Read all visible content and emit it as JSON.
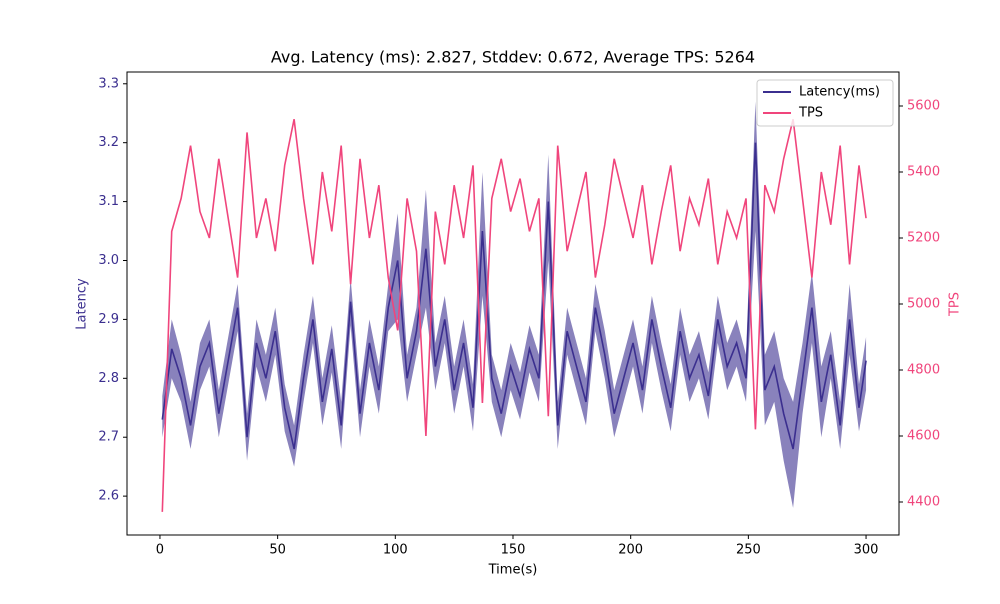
{
  "chart_data": {
    "type": "line",
    "title": "Avg. Latency (ms): 2.827, Stddev: 0.672, Average TPS: 5264",
    "xlabel": "Time(s)",
    "ylabel": "Latency",
    "y2label": "TPS",
    "legend": "upper right",
    "x": [
      1,
      5,
      9,
      13,
      17,
      21,
      25,
      29,
      33,
      37,
      41,
      45,
      49,
      53,
      57,
      61,
      65,
      69,
      73,
      77,
      81,
      85,
      89,
      93,
      97,
      101,
      105,
      109,
      113,
      117,
      121,
      125,
      129,
      133,
      137,
      141,
      145,
      149,
      153,
      157,
      161,
      165,
      169,
      173,
      177,
      181,
      185,
      189,
      193,
      197,
      201,
      205,
      209,
      213,
      217,
      221,
      225,
      229,
      233,
      237,
      241,
      245,
      249,
      253,
      257,
      261,
      265,
      269,
      273,
      277,
      281,
      285,
      289,
      293,
      297,
      300
    ],
    "series": [
      {
        "name": "Latency(ms)",
        "color": "#3b2f8f",
        "axis": "y",
        "values": [
          2.73,
          2.85,
          2.8,
          2.72,
          2.82,
          2.86,
          2.74,
          2.83,
          2.92,
          2.7,
          2.86,
          2.8,
          2.88,
          2.75,
          2.68,
          2.8,
          2.9,
          2.76,
          2.85,
          2.72,
          2.93,
          2.74,
          2.86,
          2.78,
          2.92,
          3.0,
          2.8,
          2.88,
          3.02,
          2.82,
          2.9,
          2.78,
          2.86,
          2.75,
          3.05,
          2.8,
          2.74,
          2.82,
          2.77,
          2.85,
          2.8,
          3.1,
          2.72,
          2.88,
          2.82,
          2.76,
          2.92,
          2.84,
          2.74,
          2.8,
          2.86,
          2.78,
          2.9,
          2.82,
          2.75,
          2.88,
          2.8,
          2.84,
          2.77,
          2.9,
          2.82,
          2.86,
          2.8,
          3.2,
          2.78,
          2.82,
          2.74,
          2.68,
          2.8,
          2.92,
          2.76,
          2.84,
          2.72,
          2.9,
          2.75,
          2.83
        ],
        "lower": [
          2.7,
          2.8,
          2.76,
          2.68,
          2.78,
          2.82,
          2.7,
          2.79,
          2.88,
          2.66,
          2.82,
          2.76,
          2.84,
          2.71,
          2.65,
          2.76,
          2.86,
          2.72,
          2.81,
          2.68,
          2.89,
          2.7,
          2.82,
          2.74,
          2.88,
          2.9,
          2.76,
          2.84,
          2.92,
          2.78,
          2.86,
          2.74,
          2.82,
          2.71,
          2.94,
          2.76,
          2.7,
          2.78,
          2.73,
          2.81,
          2.76,
          3.0,
          2.68,
          2.84,
          2.78,
          2.72,
          2.88,
          2.8,
          2.7,
          2.76,
          2.82,
          2.74,
          2.86,
          2.78,
          2.71,
          2.84,
          2.76,
          2.8,
          2.73,
          2.86,
          2.78,
          2.82,
          2.76,
          3.05,
          2.72,
          2.76,
          2.66,
          2.58,
          2.74,
          2.86,
          2.7,
          2.8,
          2.68,
          2.84,
          2.71,
          2.78
        ],
        "upper": [
          2.77,
          2.9,
          2.84,
          2.76,
          2.86,
          2.9,
          2.78,
          2.87,
          2.96,
          2.74,
          2.9,
          2.84,
          2.92,
          2.79,
          2.72,
          2.84,
          2.94,
          2.8,
          2.89,
          2.76,
          2.97,
          2.78,
          2.9,
          2.82,
          2.96,
          3.08,
          2.84,
          2.92,
          3.12,
          2.86,
          2.94,
          2.82,
          2.9,
          2.79,
          3.15,
          2.84,
          2.78,
          2.86,
          2.81,
          2.89,
          2.84,
          3.18,
          2.76,
          2.92,
          2.86,
          2.8,
          2.96,
          2.88,
          2.78,
          2.84,
          2.9,
          2.82,
          2.94,
          2.86,
          2.79,
          2.92,
          2.84,
          2.88,
          2.81,
          2.94,
          2.86,
          2.9,
          2.84,
          3.27,
          2.84,
          2.88,
          2.8,
          2.76,
          2.86,
          2.98,
          2.82,
          2.88,
          2.76,
          2.96,
          2.79,
          2.87
        ]
      },
      {
        "name": "TPS",
        "color": "#f0457c",
        "axis": "y2",
        "values": [
          4370,
          5220,
          5320,
          5480,
          5280,
          5200,
          5440,
          5260,
          5080,
          5520,
          5200,
          5320,
          5160,
          5420,
          5560,
          5320,
          5120,
          5400,
          5220,
          5480,
          5060,
          5440,
          5200,
          5360,
          5080,
          4920,
          5320,
          5160,
          4600,
          5280,
          5120,
          5360,
          5200,
          5420,
          4700,
          5320,
          5440,
          5280,
          5380,
          5220,
          5320,
          4660,
          5480,
          5160,
          5280,
          5400,
          5080,
          5240,
          5440,
          5320,
          5200,
          5360,
          5120,
          5280,
          5420,
          5160,
          5320,
          5240,
          5380,
          5120,
          5280,
          5200,
          5320,
          4620,
          5360,
          5280,
          5440,
          5560,
          5320,
          5080,
          5400,
          5240,
          5480,
          5120,
          5420,
          5260
        ]
      }
    ],
    "xlim": [
      -14,
      314
    ],
    "xticks": [
      0,
      50,
      100,
      150,
      200,
      250,
      300
    ],
    "ylim": [
      2.534,
      3.32
    ],
    "yticks": [
      2.6,
      2.7,
      2.8,
      2.9,
      {
        "value": 3.0,
        "label": "3.0"
      },
      3.1,
      3.2,
      3.3
    ],
    "y2lim": [
      4300,
      5703
    ],
    "y2ticks": [
      4400,
      4600,
      4800,
      5000,
      5200,
      5400,
      5600
    ]
  }
}
